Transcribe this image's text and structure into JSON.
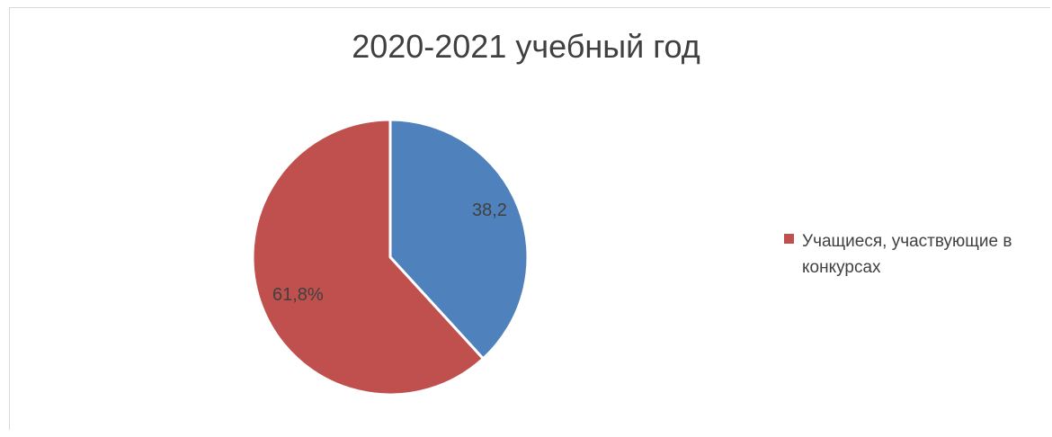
{
  "chart_data": {
    "type": "pie",
    "title": "2020-2021 учебный год",
    "slices": [
      {
        "label": "38,2",
        "value": 38.2,
        "color": "#4F81BD",
        "legend": null
      },
      {
        "label": "61,8%",
        "value": 61.8,
        "color": "#C0504D",
        "legend": "Учащиеся, участвующие в конкурсах"
      }
    ],
    "start_angle_deg": 0,
    "direction": "clockwise",
    "legend_position": "right"
  }
}
